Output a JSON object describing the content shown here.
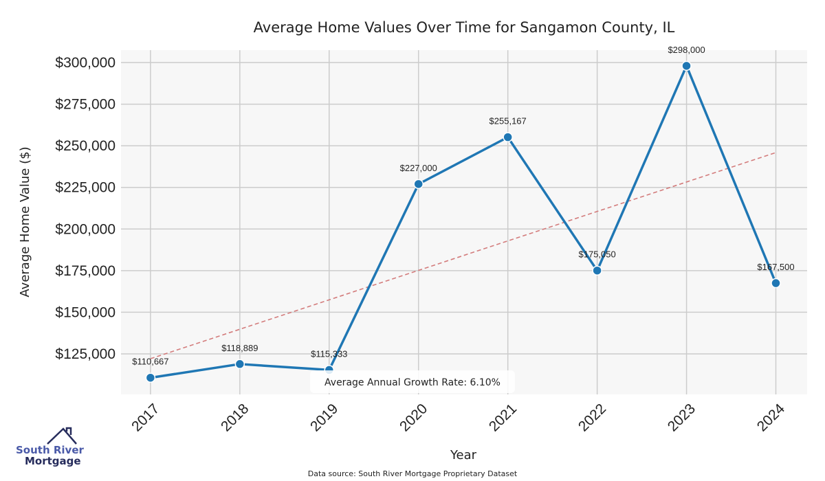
{
  "chart_data": {
    "type": "line",
    "title": "Average Home Values Over Time for Sangamon County, IL",
    "xlabel": "Year",
    "ylabel": "Average Home Value ($)",
    "categories": [
      "2017",
      "2018",
      "2019",
      "2020",
      "2021",
      "2022",
      "2023",
      "2024"
    ],
    "x": [
      2017,
      2018,
      2019,
      2020,
      2021,
      2022,
      2023,
      2024
    ],
    "values": [
      110667,
      118889,
      115333,
      227000,
      255167,
      175050,
      298000,
      167500
    ],
    "data_labels": [
      "$110,667",
      "$118,889",
      "$115,333",
      "$227,000",
      "$255,167",
      "$175,050",
      "$298,000",
      "$167,500"
    ],
    "yticks": [
      125000,
      150000,
      175000,
      200000,
      225000,
      250000,
      275000,
      300000
    ],
    "ytick_labels": [
      "$125,000",
      "$150,000",
      "$175,000",
      "$200,000",
      "$225,000",
      "$250,000",
      "$275,000",
      "$300,000"
    ],
    "ylim": [
      100650,
      307430
    ],
    "xlim": [
      2016.67,
      2024.35
    ],
    "grid": true,
    "trend": {
      "start_value": 122100,
      "end_value": 245930,
      "color": "#d37b7b"
    },
    "annotation": "Average Annual Growth Rate: 6.10%",
    "line_color": "#1f77b4",
    "plot_bg": "#f7f7f7"
  },
  "footer": {
    "source": "Data source: South River Mortgage Proprietary Dataset"
  },
  "logo": {
    "line1": "South River",
    "line2": "Mortgage"
  }
}
